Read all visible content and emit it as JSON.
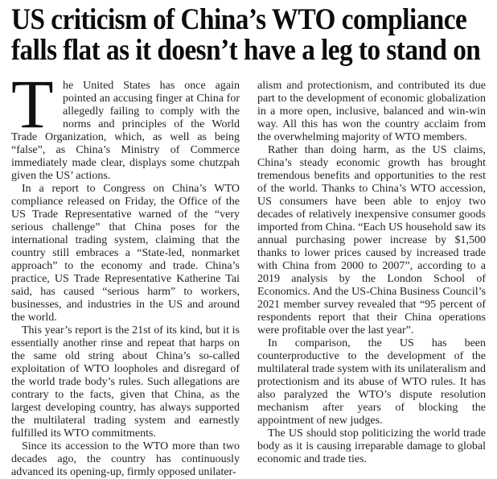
{
  "page": {
    "background": "#ffffff",
    "text_color": "#1f1f1f",
    "headline_color": "#0c0c0c"
  },
  "article": {
    "headline_lines": [
      "US criticism of China’s WTO compliance",
      "falls flat as it doesn’t have a leg to stand on"
    ],
    "drop_cap": "T",
    "columns": {
      "left": {
        "lead_after_drop_cap": "he United States has once again pointed an accusing finger at China for allegedly failing to comply with the norms and principles of the World Trade Organization, which, as well as being “false”, as China’s Ministry of Commerce immediately made clear, displays some chutzpah given the US’ actions.",
        "paragraphs": [
          "In a report to Congress on China’s WTO compliance released on Friday, the Office of the US Trade Representative warned of the “very serious challenge” that China poses for the international trading system, claiming that the country still embraces a “State-led, nonmarket approach” to the economy and trade. China’s practice, US Trade Representative Katherine Tai said, has caused “serious harm” to workers, businesses, and industries in the US and around the world.",
          "This year’s report is the 21st of its kind, but it is essentially another rinse and repeat that harps on the same old string about China’s so-called exploitation of WTO loopholes and disregard of the world trade body’s rules. Such allegations are contrary to the facts, given that China, as the largest developing country, has always supported the multilateral trading system and earnestly fulfilled its WTO commitments.",
          "Since its accession to the WTO more than two decades ago, the country has continuously advanced its opening-up, firmly opposed unilater-"
        ]
      },
      "right": {
        "paragraphs": [
          "alism and protectionism, and contributed its due part to the development of economic globalization in a more open, inclusive, balanced and win-win way. All this has won the country acclaim from the overwhelming majority of WTO members.",
          "Rather than doing harm, as the US claims, China’s steady economic growth has brought tremendous benefits and opportunities to the rest of the world. Thanks to China’s WTO accession, US consumers have been able to enjoy two decades of relatively inexpensive consumer goods imported from China. “Each US household saw its annual purchasing power increase by $1,500 thanks to lower prices caused by increased trade with China from 2000 to 2007”, according to a 2019 analysis by the London School of Economics. And the US-China Business Council’s 2021 member survey revealed that “95 percent of respondents report that their China operations were profitable over the last year”.",
          "In comparison, the US has been counterproductive to the development of the multilateral trade system with its unilateralism and protectionism and its abuse of WTO rules. It has also paralyzed the WTO’s dispute resolution mechanism after years of blocking the appointment of new judges.",
          "The US should stop politicizing the world trade body as it is causing irreparable damage to global economic and trade ties."
        ]
      }
    }
  }
}
